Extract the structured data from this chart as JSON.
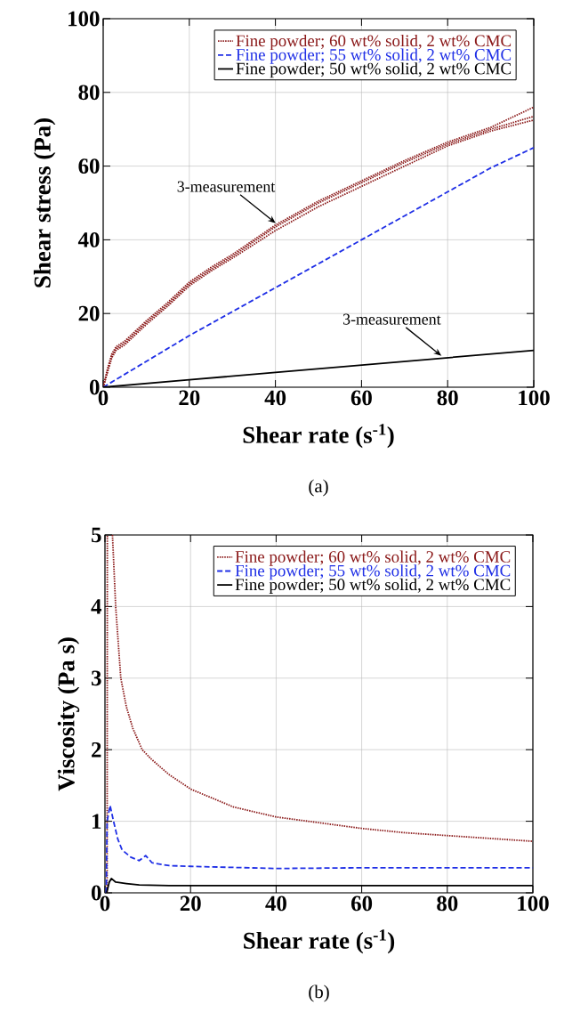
{
  "chart_data": [
    {
      "type": "line",
      "xlabel": "Shear rate (s$^{-1}$)",
      "ylabel": "Shear stress (Pa)",
      "xlim": [
        0,
        100
      ],
      "ylim": [
        0,
        100
      ],
      "xticks": [
        0,
        20,
        40,
        60,
        80,
        100
      ],
      "yticks": [
        0,
        20,
        40,
        60,
        80,
        100
      ],
      "grid": true,
      "legend": "top right",
      "annotations": [
        {
          "text": "3-measurement",
          "x": 40.5,
          "y": 44
        },
        {
          "text": "3-measurement",
          "x": 79,
          "y": 8
        },
        "(a)"
      ],
      "series": [
        {
          "name": "Fine powder; 60 wt% solid, 2 wt% CMC",
          "color": "#8b1a1a",
          "line_style": "dotted",
          "x": [
            0,
            1,
            2,
            3,
            5,
            10,
            15,
            20,
            25,
            30,
            40,
            50,
            60,
            70,
            80,
            90,
            100
          ],
          "values": [
            0,
            5,
            9,
            11,
            12.5,
            18,
            23,
            28.5,
            32.5,
            36,
            44,
            50.5,
            56,
            61.5,
            66.5,
            70.5,
            76
          ]
        },
        {
          "color": "#8b1a1a",
          "line_style": "dotted",
          "x": [
            0,
            1,
            2,
            3,
            5,
            10,
            15,
            20,
            25,
            30,
            40,
            50,
            60,
            70,
            80,
            90,
            100
          ],
          "values": [
            0,
            4.5,
            8.5,
            10.5,
            12,
            17.5,
            22.5,
            28,
            32,
            35.5,
            43.5,
            50,
            55.5,
            61,
            66,
            70,
            73.5
          ]
        },
        {
          "color": "#8b1a1a",
          "line_style": "dotted",
          "x": [
            0,
            1,
            2,
            3,
            5,
            10,
            15,
            20,
            25,
            30,
            40,
            50,
            60,
            70,
            80,
            90,
            100
          ],
          "values": [
            0,
            4,
            8,
            10,
            11.5,
            17,
            22,
            27.5,
            31.5,
            35,
            42.5,
            49,
            54.5,
            60,
            65.5,
            69.5,
            72.5
          ]
        },
        {
          "name": "Fine powder; 55 wt% solid, 2 wt% CMC",
          "color": "#1f2fe6",
          "line_style": "dashed",
          "x": [
            0,
            10,
            20,
            30,
            40,
            50,
            60,
            70,
            80,
            90,
            100
          ],
          "values": [
            0,
            7,
            14,
            20.5,
            27,
            33.5,
            40,
            46.5,
            53,
            59.5,
            65
          ]
        },
        {
          "name": "Fine powder; 50 wt% solid, 2 wt% CMC",
          "color": "#000000",
          "line_style": "solid",
          "x": [
            0,
            20,
            40,
            60,
            80,
            100
          ],
          "values": [
            0,
            2,
            4,
            6,
            8,
            10
          ]
        }
      ]
    },
    {
      "type": "line",
      "xlabel": "Shear rate (s$^{-1}$)",
      "ylabel": "Viscosity (Pa s)",
      "xlim": [
        0,
        100
      ],
      "ylim": [
        0,
        5
      ],
      "xticks": [
        0,
        20,
        40,
        60,
        80,
        100
      ],
      "yticks": [
        0,
        1,
        2,
        3,
        4,
        5
      ],
      "grid": true,
      "legend": "top right",
      "annotations": [
        "(b)"
      ],
      "series": [
        {
          "name": "Fine powder; 60 wt% solid, 2 wt% CMC",
          "color": "#8b1a1a",
          "line_style": "dotted",
          "x": [
            0.5,
            0.55,
            1,
            1.75,
            2.5,
            3.7,
            5,
            6.5,
            8.7,
            10.8,
            15,
            20,
            30,
            40,
            50,
            60,
            70,
            80,
            90,
            100
          ],
          "values": [
            0,
            5,
            null,
            5,
            4,
            3,
            2.6,
            2.3,
            2.0,
            1.87,
            1.65,
            1.45,
            1.2,
            1.06,
            0.98,
            0.9,
            0.84,
            0.8,
            0.76,
            0.72
          ]
        },
        {
          "name": "Fine powder; 55 wt% solid, 2 wt% CMC",
          "color": "#1f2fe6",
          "line_style": "dashed",
          "x": [
            0.3,
            0.5,
            1.2,
            2,
            3,
            4,
            6,
            8,
            9.5,
            11,
            15,
            20,
            40,
            60,
            80,
            100
          ],
          "values": [
            0,
            1.0,
            1.22,
            1.0,
            0.75,
            0.6,
            0.5,
            0.45,
            0.52,
            0.42,
            0.38,
            0.37,
            0.34,
            0.35,
            0.35,
            0.35
          ]
        },
        {
          "name": "Fine powder; 50 wt% solid, 2 wt% CMC",
          "color": "#000000",
          "line_style": "solid",
          "x": [
            0.4,
            1,
            1.5,
            2.5,
            5,
            8,
            15,
            100
          ],
          "values": [
            0,
            0.15,
            0.2,
            0.15,
            0.13,
            0.11,
            0.1,
            0.1
          ]
        }
      ]
    }
  ]
}
